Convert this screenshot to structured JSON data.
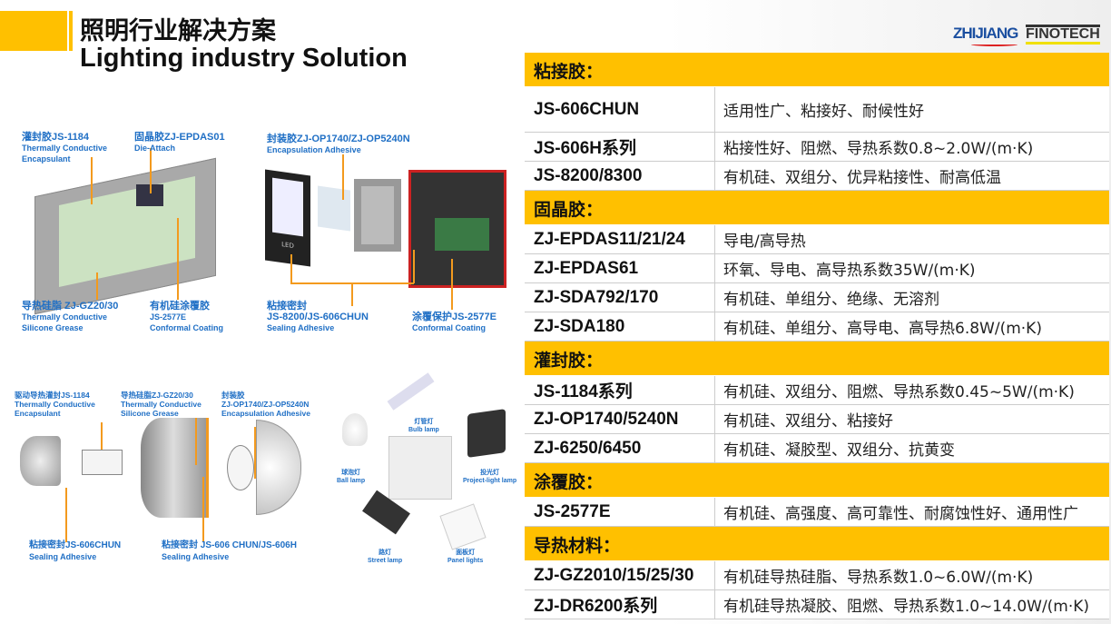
{
  "header": {
    "title_cn": "照明行业解决方案",
    "title_en": "Lighting industry Solution"
  },
  "logos": {
    "zhijiang": "ZHIJIANG",
    "finotech": "FINOTECH"
  },
  "colors": {
    "accent": "#FFC000",
    "label_blue": "#1F6FC5",
    "callout_line": "#F39A1E"
  },
  "diagram1": {
    "labels": [
      {
        "cn": "灌封胶JS-1184",
        "en1": "Thermally Conductive",
        "en2": "Encapsulant"
      },
      {
        "cn": "固晶胶ZJ-EPDAS01",
        "en1": "Die-Attach"
      },
      {
        "cn": "导热硅脂 ZJ-GZ20/30",
        "en1": "Thermally Conductive",
        "en2": "Silicone Grease"
      },
      {
        "cn": "有机硅涂覆胶",
        "en1": "JS-2577E",
        "en2": "Conformal Coating"
      }
    ]
  },
  "diagram2": {
    "labels": [
      {
        "cn": "封装胶ZJ-OP1740/ZJ-OP5240N",
        "en1": "Encapsulation Adhesive"
      },
      {
        "cn": "粘接密封",
        "en1": "JS-8200/JS-606CHUN",
        "en2": "Sealing Adhesive"
      },
      {
        "cn": "涂覆保护JS-2577E",
        "en1": "Conformal Coating"
      }
    ],
    "led_text": "LED"
  },
  "diagram3": {
    "labels": [
      {
        "cn": "驱动导热灌封JS-1184",
        "en1": "Thermally Conductive",
        "en2": "Encapsulant"
      },
      {
        "cn": "导热硅脂ZJ-GZ20/30",
        "en1": "Thermally Conductive",
        "en2": "Silicone Grease"
      },
      {
        "cn": "封装胶",
        "en1": "ZJ-OP1740/ZJ-OP5240N",
        "en2": "Encapsulation Adhesive"
      },
      {
        "cn": "粘接密封JS-606CHUN",
        "en1": "Sealing Adhesive"
      },
      {
        "cn": "粘接密封 JS-606 CHUN/JS-606H",
        "en1": "Sealing Adhesive"
      }
    ]
  },
  "lamps": [
    {
      "cn": "球泡灯",
      "en": "Ball lamp"
    },
    {
      "cn": "灯管灯",
      "en": "Bulb lamp"
    },
    {
      "cn": "投光灯",
      "en": "Project-light lamp"
    },
    {
      "cn": "路灯",
      "en": "Street lamp"
    },
    {
      "cn": "面板灯",
      "en": "Panel lights"
    }
  ],
  "table": {
    "sections": [
      {
        "title": "粘接胶：",
        "rows": [
          [
            "JS-606CHUN",
            "适用性广、粘接好、耐候性好"
          ],
          [
            "JS-606H系列",
            "粘接性好、阻燃、导热系数0.8~2.0W/(m·K)"
          ],
          [
            "JS-8200/8300",
            "有机硅、双组分、优异粘接性、耐高低温"
          ]
        ]
      },
      {
        "title": "固晶胶：",
        "rows": [
          [
            "ZJ-EPDAS11/21/24",
            "导电/高导热"
          ],
          [
            "ZJ-EPDAS61",
            "环氧、导电、高导热系数35W/(m·K)"
          ],
          [
            "ZJ-SDA792/170",
            "有机硅、单组分、绝缘、无溶剂"
          ],
          [
            "ZJ-SDA180",
            "有机硅、单组分、高导电、高导热6.8W/(m·K)"
          ]
        ]
      },
      {
        "title": "灌封胶：",
        "rows": [
          [
            "JS-1184系列",
            "有机硅、双组分、阻燃、导热系数0.45~5W/(m·K)"
          ],
          [
            "ZJ-OP1740/5240N",
            "有机硅、双组分、粘接好"
          ],
          [
            "ZJ-6250/6450",
            "有机硅、凝胶型、双组分、抗黄变"
          ]
        ]
      },
      {
        "title": "涂覆胶：",
        "rows": [
          [
            "JS-2577E",
            "有机硅、高强度、高可靠性、耐腐蚀性好、通用性广"
          ]
        ]
      },
      {
        "title": "导热材料：",
        "rows": [
          [
            "ZJ-GZ2010/15/25/30",
            "有机硅导热硅脂、导热系数1.0~6.0W/(m·K)"
          ],
          [
            "ZJ-DR6200系列",
            "有机硅导热凝胶、阻燃、导热系数1.0~14.0W/(m·K)"
          ]
        ]
      }
    ]
  }
}
